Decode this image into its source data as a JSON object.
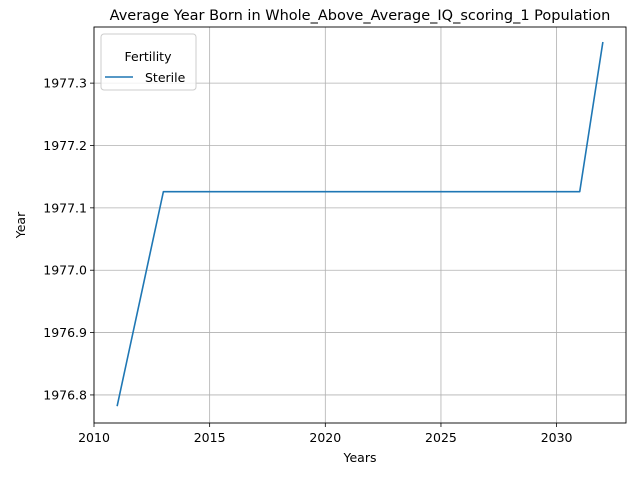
{
  "chart_data": {
    "type": "line",
    "title": "Average Year Born in Whole_Above_Average_IQ_scoring_1 Population",
    "xlabel": "Years",
    "ylabel": "Year",
    "xlim": [
      2010,
      2033
    ],
    "ylim": [
      1976.755,
      1977.39
    ],
    "xticks": [
      2010,
      2015,
      2020,
      2025,
      2030
    ],
    "yticks": [
      1976.8,
      1976.9,
      1977.0,
      1977.1,
      1977.2,
      1977.3
    ],
    "ytick_labels": [
      "1976.8",
      "1976.9",
      "1977.0",
      "1977.1",
      "1977.2",
      "1977.3"
    ],
    "grid": true,
    "legend": {
      "title": "Fertility",
      "placement": "top-left"
    },
    "series": [
      {
        "name": "Sterile",
        "color": "#1f77b4",
        "x": [
          2011,
          2012,
          2013,
          2014,
          2015,
          2016,
          2017,
          2018,
          2019,
          2020,
          2021,
          2022,
          2023,
          2024,
          2025,
          2026,
          2027,
          2028,
          2029,
          2030,
          2031,
          2032
        ],
        "y": [
          1976.782,
          1976.954,
          1977.126,
          1977.126,
          1977.126,
          1977.126,
          1977.126,
          1977.126,
          1977.126,
          1977.126,
          1977.126,
          1977.126,
          1977.126,
          1977.126,
          1977.126,
          1977.126,
          1977.126,
          1977.126,
          1977.126,
          1977.126,
          1977.126,
          1977.366
        ]
      }
    ]
  }
}
